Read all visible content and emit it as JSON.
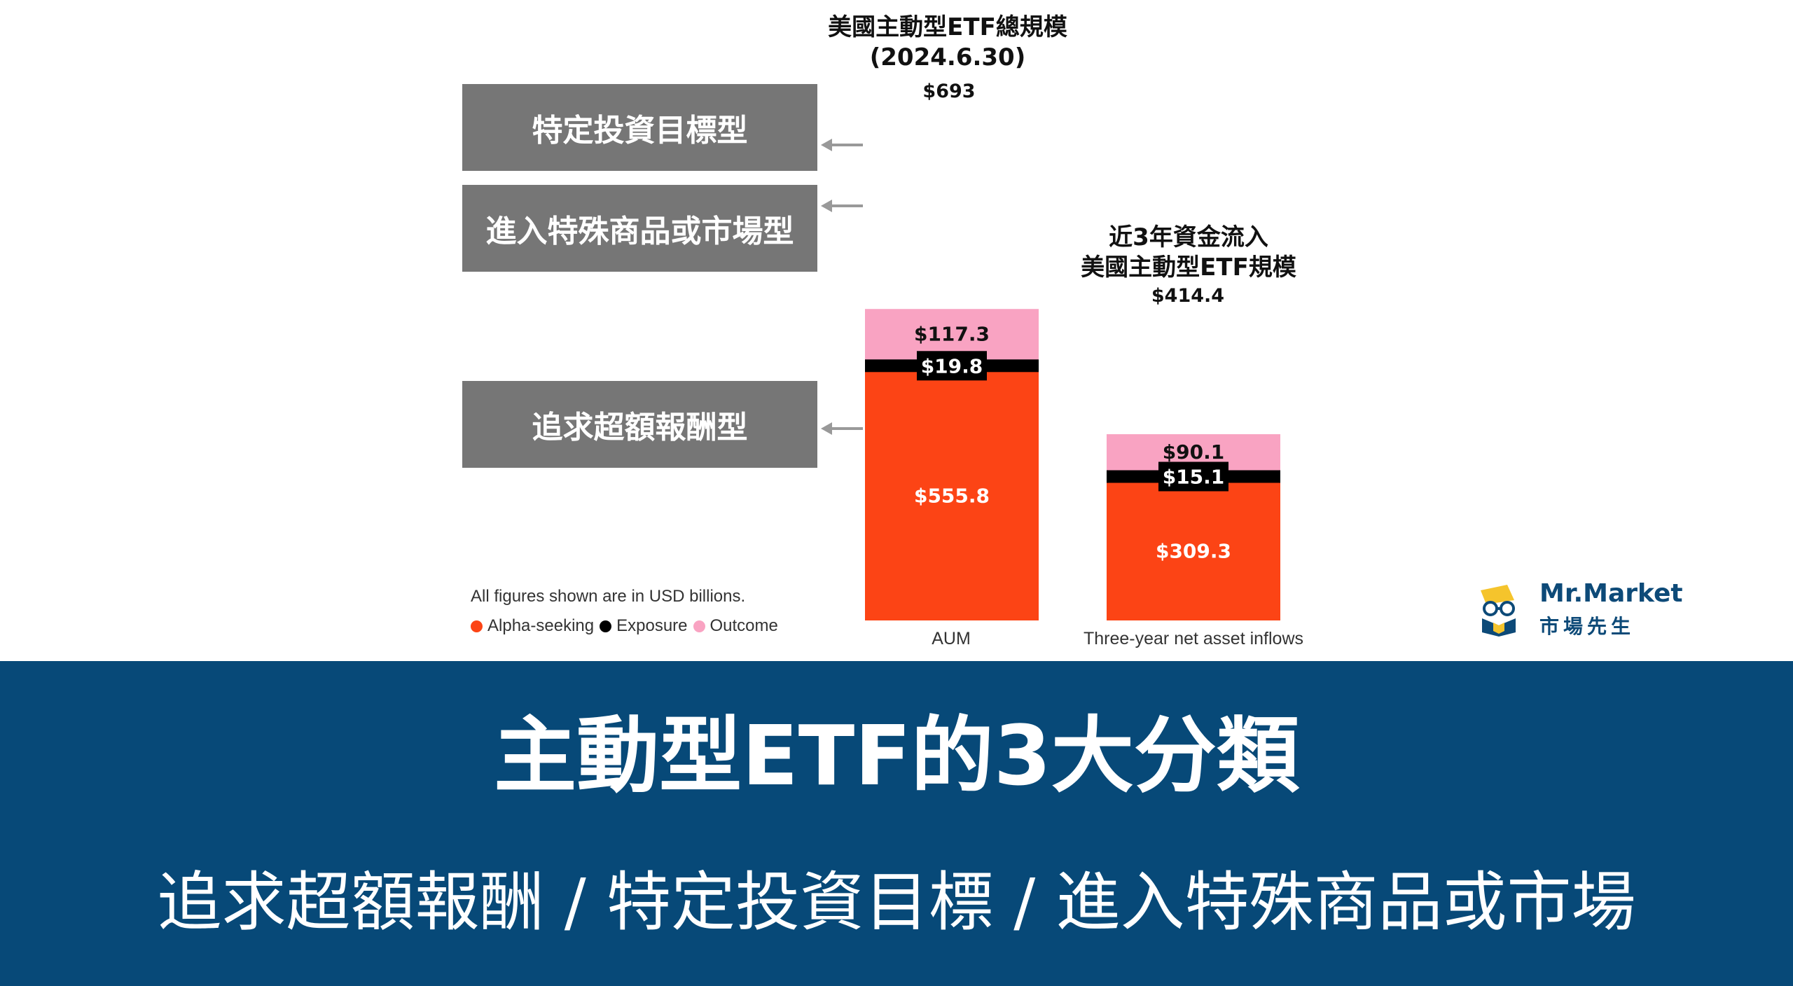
{
  "chart_data": {
    "type": "bar",
    "stacked": true,
    "categories": [
      "AUM",
      "Three-year net asset inflows"
    ],
    "column_titles": [
      "美國主動型ETF總規模(2024.6.30)",
      "近3年資金流入\n美國主動型ETF規模"
    ],
    "totals": [
      "$693",
      "$414.4"
    ],
    "total_values": [
      693,
      414.4
    ],
    "series": [
      {
        "name": "Alpha-seeking",
        "color": "#fc4415",
        "values": [
          555.8,
          309.3
        ],
        "labels": [
          "$555.8",
          "$309.3"
        ]
      },
      {
        "name": "Exposure",
        "color": "#000000",
        "values": [
          19.8,
          15.1
        ],
        "labels": [
          "$19.8",
          "$15.1"
        ]
      },
      {
        "name": "Outcome",
        "color": "#f9a3c2",
        "values": [
          117.3,
          90.1
        ],
        "labels": [
          "$117.3",
          "$90.1"
        ]
      }
    ],
    "footnote": "All figures shown are in USD billions.",
    "legend_position": "bottom-left",
    "grid": false
  },
  "category_boxes": [
    {
      "label": "特定投資目標型",
      "points_to": "Outcome"
    },
    {
      "label": "進入特殊商品或市場型",
      "points_to": "Exposure"
    },
    {
      "label": "追求超額報酬型",
      "points_to": "Alpha-seeking"
    }
  ],
  "logo": {
    "en": "Mr.Market",
    "zh": "市場先生"
  },
  "banner": {
    "title": "主動型ETF的3大分類",
    "subtitle": "追求超額報酬 / 特定投資目標 / 進入特殊商品或市場"
  },
  "colors": {
    "banner_bg": "#074978",
    "box_bg": "#767676",
    "arrow": "#999999",
    "brand": "#0d4a78",
    "logo_yellow": "#f5c42c"
  }
}
